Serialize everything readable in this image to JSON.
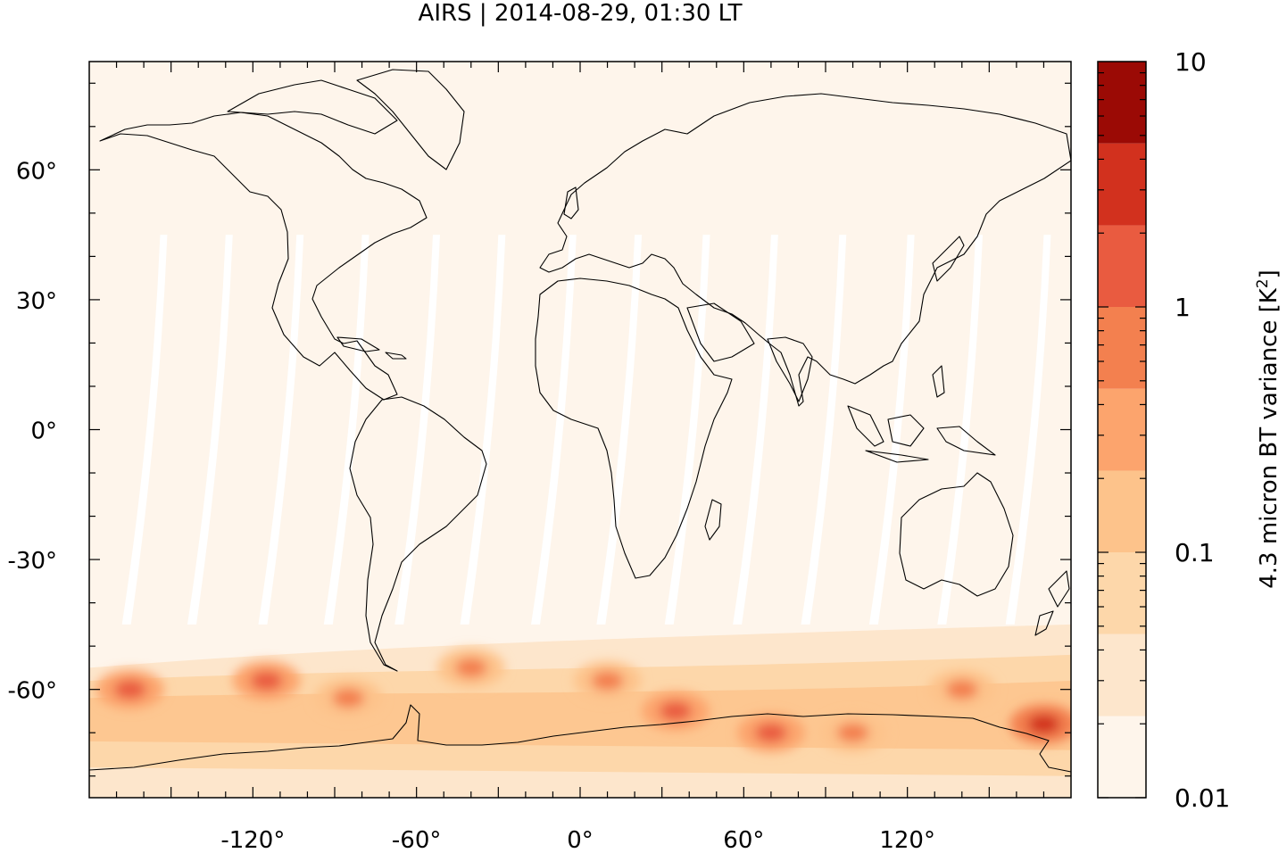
{
  "title": "AIRS | 2014-08-29, 01:30 LT",
  "chart_data": {
    "type": "heatmap",
    "title": "AIRS | 2014-08-29, 01:30 LT",
    "projection": "equirectangular",
    "xlim": [
      -180,
      180
    ],
    "ylim": [
      -85,
      85
    ],
    "x_ticks": [
      -120,
      -60,
      0,
      60,
      120
    ],
    "x_tick_labels": [
      "-120°",
      "-60°",
      "0°",
      "60°",
      "120°"
    ],
    "y_ticks": [
      60,
      30,
      0,
      -30,
      -60
    ],
    "y_tick_labels": [
      "60°",
      "30°",
      "0°",
      "-30°",
      "-60°"
    ],
    "background_level_color": "#fef5eb",
    "colorbar": {
      "label_prefix": "4.3 micron BT variance [K",
      "label_exp": "2",
      "label_suffix": "]",
      "scale": "log",
      "range": [
        0.01,
        10
      ],
      "tick_values": [
        0.01,
        0.1,
        1,
        10
      ],
      "tick_labels": [
        "0.01",
        "0.1",
        "1",
        "10"
      ],
      "levels": [
        {
          "min": 0.01,
          "max": 0.0215,
          "color": "#fef5eb"
        },
        {
          "min": 0.0215,
          "max": 0.0464,
          "color": "#fde6cc"
        },
        {
          "min": 0.0464,
          "max": 0.1,
          "color": "#fdd7aa"
        },
        {
          "min": 0.1,
          "max": 0.215,
          "color": "#fdc38b"
        },
        {
          "min": 0.215,
          "max": 0.464,
          "color": "#fca46d"
        },
        {
          "min": 0.464,
          "max": 1,
          "color": "#f3804f"
        },
        {
          "min": 1,
          "max": 2.15,
          "color": "#e95b40"
        },
        {
          "min": 2.15,
          "max": 4.64,
          "color": "#d2311e"
        },
        {
          "min": 4.64,
          "max": 10,
          "color": "#9b0a05"
        }
      ]
    },
    "data_gaps_color": "#ffffff",
    "hotspots": [
      {
        "lon": -165,
        "lat": -60,
        "level": 6
      },
      {
        "lon": -115,
        "lat": -58,
        "level": 6
      },
      {
        "lon": -85,
        "lat": -62,
        "level": 5
      },
      {
        "lon": -40,
        "lat": -55,
        "level": 5
      },
      {
        "lon": 10,
        "lat": -58,
        "level": 5
      },
      {
        "lon": 35,
        "lat": -65,
        "level": 6
      },
      {
        "lon": 70,
        "lat": -70,
        "level": 6
      },
      {
        "lon": 100,
        "lat": -70,
        "level": 5
      },
      {
        "lon": 140,
        "lat": -60,
        "level": 5
      },
      {
        "lon": 170,
        "lat": -68,
        "level": 7
      }
    ]
  }
}
